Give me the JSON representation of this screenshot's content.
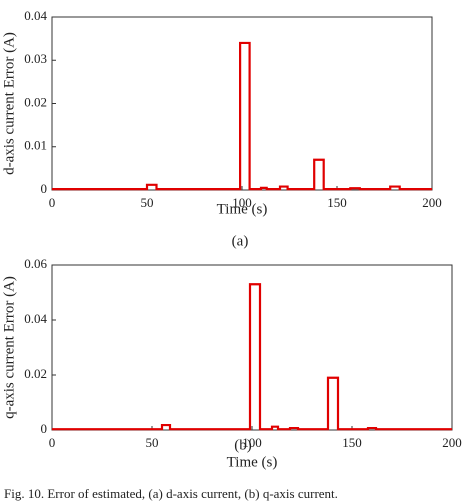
{
  "chart_data": [
    {
      "type": "line",
      "caption": "(a)",
      "xlabel": "Time (s)",
      "ylabel": "d-axis current Error (A)",
      "xlim": [
        0,
        200
      ],
      "xticks": [
        0,
        50,
        100,
        150,
        200
      ],
      "ylim": [
        0,
        0.04
      ],
      "yticks": [
        0,
        0.01,
        0.02,
        0.03,
        0.04
      ],
      "x": [
        0,
        50,
        50,
        55,
        55,
        99,
        99,
        104,
        104,
        110,
        110,
        113,
        113,
        120,
        120,
        124,
        124,
        138,
        138,
        143,
        143,
        157,
        157,
        162,
        162,
        178,
        178,
        183,
        183,
        200
      ],
      "series": [
        {
          "color": "#e00000",
          "values": [
            0.0002,
            0.0002,
            0.0012,
            0.0012,
            0.0002,
            0.0002,
            0.034,
            0.034,
            0.0002,
            0.0002,
            0.0005,
            0.0005,
            0.0002,
            0.0002,
            0.0008,
            0.0008,
            0.0002,
            0.0002,
            0.007,
            0.007,
            0.0002,
            0.0002,
            0.0004,
            0.0004,
            0.0002,
            0.0002,
            0.0008,
            0.0008,
            0.0002,
            0.0002
          ]
        }
      ]
    },
    {
      "type": "line",
      "caption": "(b)",
      "xlabel": "Time (s)",
      "ylabel": "q-axis current Error (A)",
      "xlim": [
        0,
        200
      ],
      "xticks": [
        0,
        50,
        100,
        150,
        200
      ],
      "ylim": [
        0,
        0.06
      ],
      "yticks": [
        0,
        0.02,
        0.04,
        0.06
      ],
      "x": [
        0,
        55,
        55,
        59,
        59,
        99,
        99,
        104,
        104,
        110,
        110,
        113,
        113,
        119,
        119,
        123,
        123,
        138,
        138,
        143,
        143,
        158,
        158,
        162,
        162,
        200
      ],
      "series": [
        {
          "color": "#e00000",
          "values": [
            0.0003,
            0.0003,
            0.0018,
            0.0018,
            0.0003,
            0.0003,
            0.053,
            0.053,
            0.0003,
            0.0003,
            0.0012,
            0.0012,
            0.0003,
            0.0003,
            0.0007,
            0.0007,
            0.0003,
            0.0003,
            0.019,
            0.019,
            0.0003,
            0.0003,
            0.0007,
            0.0007,
            0.0003,
            0.0003
          ]
        }
      ]
    }
  ],
  "caption": "Fig. 10. Error of estimated, (a) d-axis current, (b) q-axis current."
}
